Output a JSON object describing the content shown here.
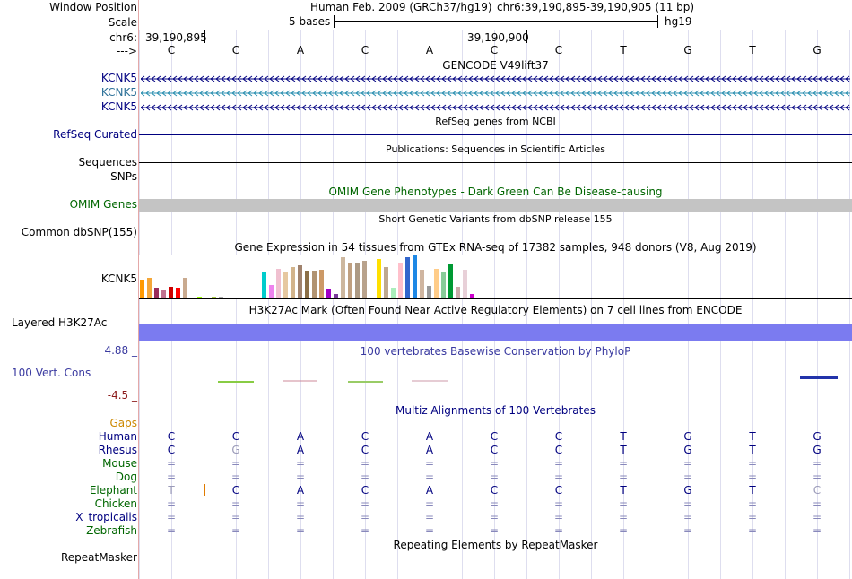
{
  "header": {
    "window_position_label": "Window Position",
    "assembly_text": "Human Feb. 2009 (GRCh37/hg19)",
    "position_text": "chr6:39,190,895-39,190,905 (11 bp)",
    "scale_label": "Scale",
    "scale_bases": "5 bases",
    "scale_db": "hg19",
    "chrom_label": "chr6:",
    "pos_left": "39,190,895",
    "pos_right": "39,190,900",
    "strand_label": "--->"
  },
  "sequence": [
    "C",
    "C",
    "A",
    "C",
    "A",
    "C",
    "C",
    "T",
    "G",
    "T",
    "G"
  ],
  "tracks": {
    "gencode": {
      "title": "GENCODE V49lift37",
      "genes": [
        "KCNK5",
        "KCNK5",
        "KCNK5"
      ]
    },
    "refseq": {
      "title": "RefSeq genes from NCBI",
      "label": "RefSeq Curated"
    },
    "publications": {
      "title": "Publications: Sequences in Scientific Articles",
      "label1": "Sequences",
      "label2": "SNPs"
    },
    "omim": {
      "title": "OMIM Gene Phenotypes - Dark Green Can Be Disease-causing",
      "label": "OMIM Genes"
    },
    "dbsnp": {
      "title": "Short Genetic Variants from dbSNP release 155",
      "label": "Common dbSNP(155)"
    },
    "gtex": {
      "title": "Gene Expression in 54 tissues from GTEx RNA-seq of 17382 samples, 948 donors (V8, Aug 2019)",
      "label": "KCNK5"
    },
    "h3k27ac": {
      "title": "H3K27Ac Mark (Often Found Near Active Regulatory Elements) on 7 cell lines from ENCODE",
      "label": "Layered H3K27Ac"
    },
    "phylop": {
      "title": "100 vertebrates Basewise Conservation by PhyloP",
      "label": "100 Vert. Cons",
      "max_label": "4.88 _",
      "min_label": "-4.5 _"
    },
    "multiz": {
      "title": "Multiz Alignments of 100 Vertebrates",
      "gaps_label": "Gaps"
    },
    "repeatmasker": {
      "title": "Repeating Elements by RepeatMasker",
      "label": "RepeatMasker"
    }
  },
  "species": [
    {
      "name": "Human",
      "color": "#000080",
      "bases": [
        "C",
        "C",
        "A",
        "C",
        "A",
        "C",
        "C",
        "T",
        "G",
        "T",
        "G"
      ]
    },
    {
      "name": "Rhesus",
      "color": "#000080",
      "bases": [
        "C",
        "G",
        "A",
        "C",
        "A",
        "C",
        "C",
        "T",
        "G",
        "T",
        "G"
      ]
    },
    {
      "name": "Mouse",
      "color": "#006600",
      "bases": [
        "=",
        "=",
        "=",
        "=",
        "=",
        "=",
        "=",
        "=",
        "=",
        "=",
        "="
      ]
    },
    {
      "name": "Dog",
      "color": "#006600",
      "bases": [
        "=",
        "=",
        "=",
        "=",
        "=",
        "=",
        "=",
        "=",
        "=",
        "=",
        "="
      ]
    },
    {
      "name": "Elephant",
      "color": "#006600",
      "bases": [
        "T",
        "C",
        "A",
        "C",
        "A",
        "C",
        "C",
        "T",
        "G",
        "T",
        "C"
      ]
    },
    {
      "name": "Chicken",
      "color": "#006600",
      "bases": [
        "=",
        "=",
        "=",
        "=",
        "=",
        "=",
        "=",
        "=",
        "=",
        "=",
        "="
      ]
    },
    {
      "name": "X_tropicalis",
      "color": "#000080",
      "bases": [
        "=",
        "=",
        "=",
        "=",
        "=",
        "=",
        "=",
        "=",
        "=",
        "=",
        "="
      ]
    },
    {
      "name": "Zebrafish",
      "color": "#006600",
      "bases": [
        "=",
        "=",
        "=",
        "=",
        "=",
        "=",
        "=",
        "=",
        "=",
        "=",
        "="
      ]
    }
  ],
  "gtex_expression": {
    "levels": [
      0.44,
      0.48,
      0.25,
      0.2,
      0.27,
      0.25,
      0.48,
      0.02,
      0.04,
      0.03,
      0.05,
      0.04,
      0.03,
      0.02,
      0.03,
      0.03,
      0.02,
      0.6,
      0.32,
      0.69,
      0.63,
      0.73,
      0.77,
      0.65,
      0.65,
      0.67,
      0.23,
      0.1,
      0.96,
      0.83,
      0.83,
      0.88,
      0.02,
      0.92,
      0.73,
      0.25,
      0.83,
      0.96,
      1.0,
      0.67,
      0.29,
      0.69,
      0.63,
      0.79,
      0.27,
      0.67,
      0.1
    ],
    "colors": [
      "#ff9900",
      "#f4a638",
      "#9a2c5b",
      "#c17390",
      "#cc0000",
      "#ff0000",
      "#c9aa8f",
      "#aaeeaa",
      "#99ff00",
      "#bbdd66",
      "#aacc44",
      "#aaaaaa",
      "#ccccff",
      "#9999ff",
      "#eeeeee",
      "#ddddcc",
      "#ffd700",
      "#00cccc",
      "#ee82ee",
      "#f0c0d0",
      "#e6c8a0",
      "#d2b48c",
      "#a0826d",
      "#8b6f47",
      "#b19371",
      "#cc9966",
      "#9f00c5",
      "#7a3a9a",
      "#cdb79e",
      "#c0a080",
      "#ad9a84",
      "#b8a28c",
      "#d8b0e0",
      "#ffe000",
      "#bfa890",
      "#aaeebb",
      "#ffc0cb",
      "#3366cc",
      "#1e88e5",
      "#cfb5a0",
      "#999999",
      "#ffcc88",
      "#88cc99",
      "#009933",
      "#ccaaaa",
      "#e8d0d8",
      "#cc00cc"
    ]
  }
}
